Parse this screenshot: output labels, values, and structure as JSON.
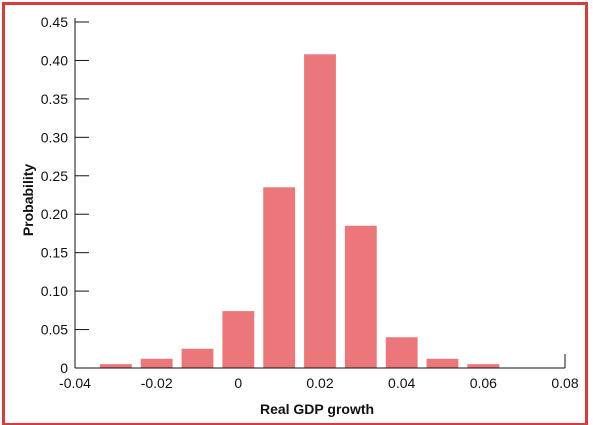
{
  "colors": {
    "border": "#d93a3a",
    "bar": "#ec777a",
    "axis": "#111111",
    "background": "#ffffff"
  },
  "chart_data": {
    "type": "bar",
    "title": "",
    "xlabel": "Real GDP growth",
    "ylabel": "Probability",
    "xlim": [
      -0.04,
      0.08
    ],
    "ylim": [
      0,
      0.45
    ],
    "x_ticks": [
      "-0.04",
      "-0.02",
      "0",
      "0.02",
      "0.04",
      "0.06",
      "0.08"
    ],
    "y_ticks": [
      "0",
      "0.05",
      "0.10",
      "0.15",
      "0.20",
      "0.25",
      "0.30",
      "0.35",
      "0.40",
      "0.45"
    ],
    "grid": false,
    "legend": "none",
    "bin_width": 0.01,
    "bars": [
      {
        "x": -0.03,
        "value": 0.005
      },
      {
        "x": -0.02,
        "value": 0.012
      },
      {
        "x": -0.01,
        "value": 0.025
      },
      {
        "x": 0.0,
        "value": 0.074
      },
      {
        "x": 0.01,
        "value": 0.235
      },
      {
        "x": 0.02,
        "value": 0.408
      },
      {
        "x": 0.03,
        "value": 0.185
      },
      {
        "x": 0.04,
        "value": 0.04
      },
      {
        "x": 0.05,
        "value": 0.012
      },
      {
        "x": 0.06,
        "value": 0.005
      }
    ]
  }
}
